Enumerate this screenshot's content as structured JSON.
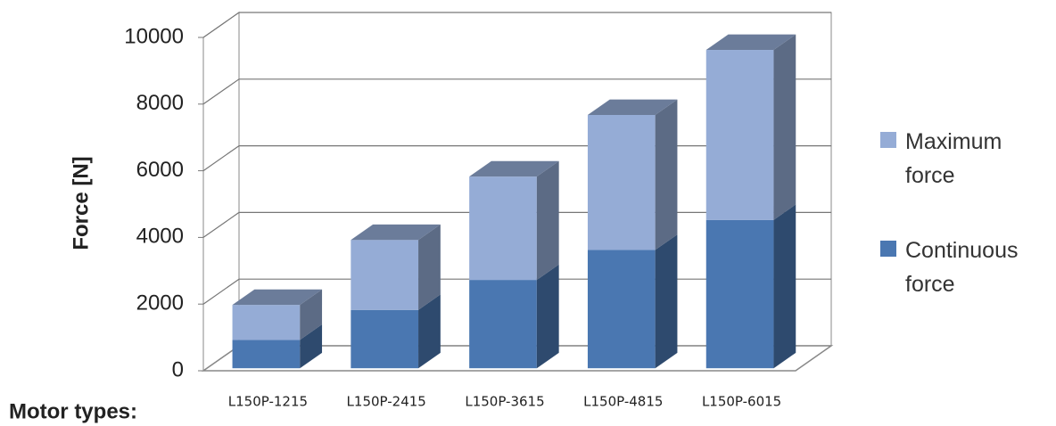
{
  "chart_data": {
    "type": "bar3d_stacked",
    "y_label": "Force [N]",
    "x_label": "Motor types:",
    "categories": [
      "L150P-1215",
      "L150P-2415",
      "L150P-3615",
      "L150P-4815",
      "L150P-6015"
    ],
    "series": [
      {
        "name": "Continuous force",
        "color": "#4a77b1",
        "values": [
          850,
          1750,
          2650,
          3550,
          4450
        ]
      },
      {
        "name": "Maximum force",
        "color": "#95acd6",
        "values": [
          1050,
          2100,
          3100,
          4050,
          5100
        ]
      }
    ],
    "ylim": [
      0,
      10000
    ],
    "yticks": [
      0,
      2000,
      4000,
      6000,
      8000,
      10000
    ],
    "grid": true
  }
}
